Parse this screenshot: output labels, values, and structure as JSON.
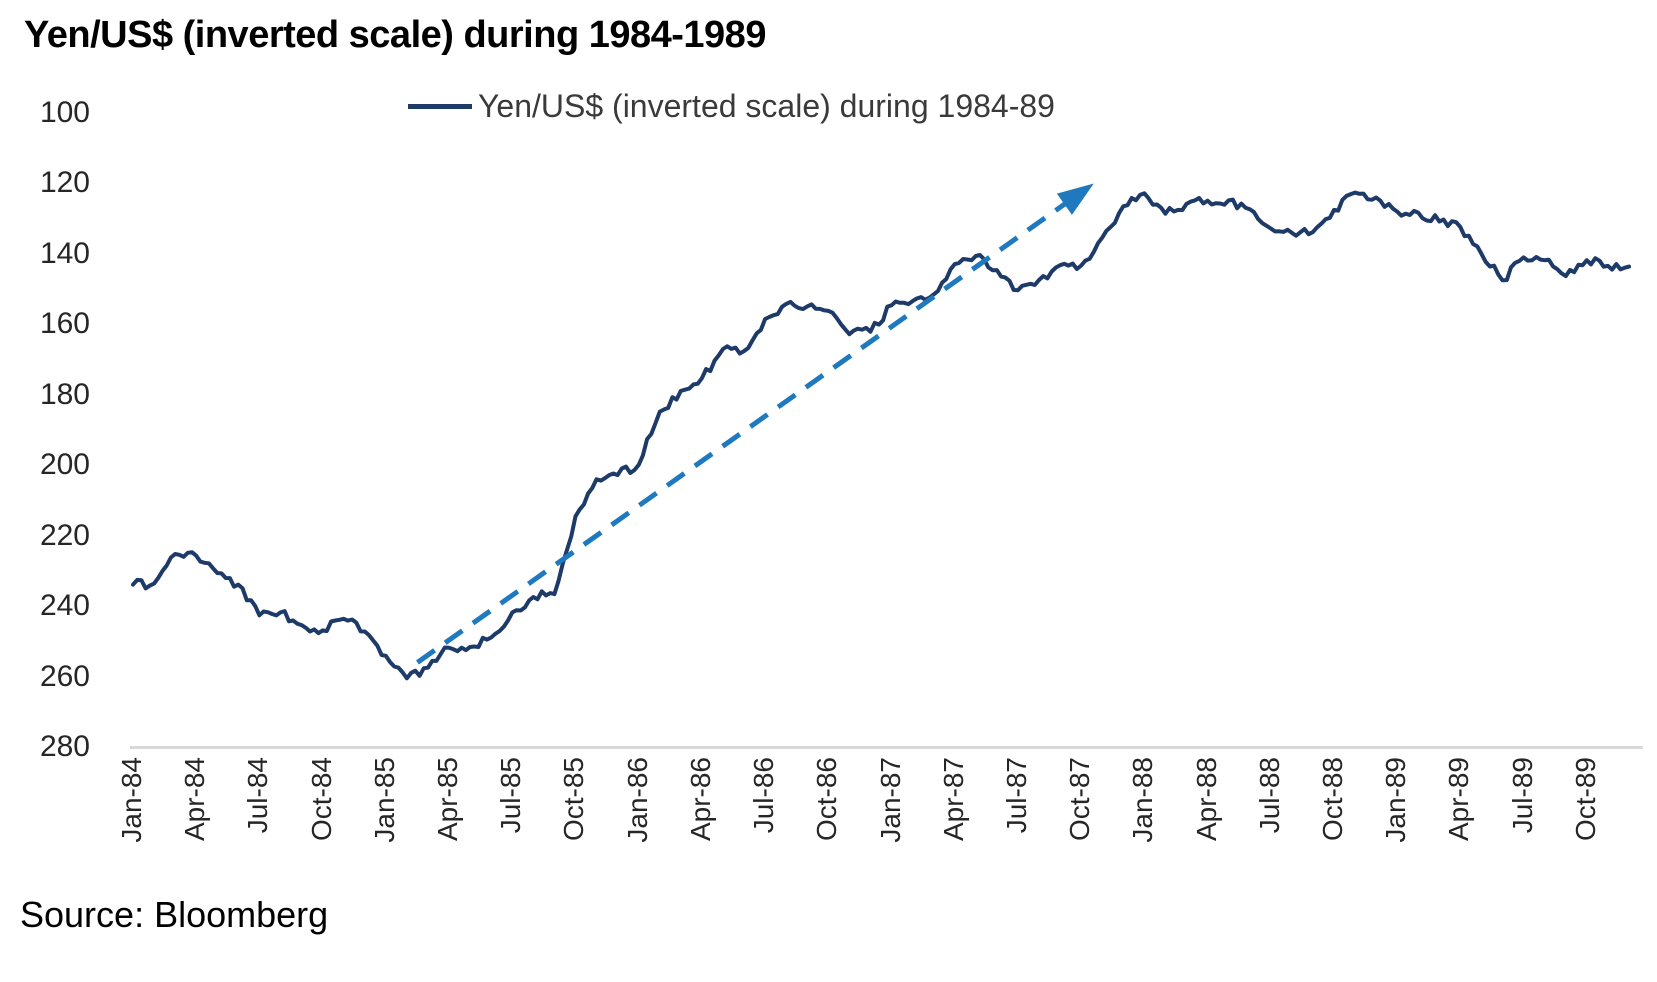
{
  "title": "Yen/US$ (inverted scale) during 1984-1989",
  "source": "Source: Bloomberg",
  "legend": {
    "label": "Yen/US$ (inverted scale) during 1984-89"
  },
  "colors": {
    "series": "#1d3a68",
    "arrow": "#1e79be",
    "axis_line": "#d9d9d9",
    "tick_text": "#262626"
  },
  "chart_data": {
    "type": "line",
    "title": "Yen/US$ (inverted scale) during 1984-1989",
    "xlabel": "",
    "ylabel": "",
    "ylim": [
      100,
      280
    ],
    "y_axis_inverted": true,
    "grid": false,
    "legend_position": "top-center",
    "y_ticks": [
      100,
      120,
      140,
      160,
      180,
      200,
      220,
      240,
      260,
      280
    ],
    "x_tick_labels": [
      "Jan-84",
      "Apr-84",
      "Jul-84",
      "Oct-84",
      "Jan-85",
      "Apr-85",
      "Jul-85",
      "Oct-85",
      "Jan-86",
      "Apr-86",
      "Jul-86",
      "Oct-86",
      "Jan-87",
      "Apr-87",
      "Jul-87",
      "Oct-87",
      "Jan-88",
      "Apr-88",
      "Jul-88",
      "Oct-88",
      "Jan-89",
      "Apr-89",
      "Jul-89",
      "Oct-89"
    ],
    "x_start": "Jan-84",
    "x_step": "1 month",
    "series": [
      {
        "name": "Yen/US$ (inverted scale) during 1984-89",
        "values": [
          233.9,
          233.6,
          225.2,
          225.7,
          230.6,
          233.9,
          242.6,
          241.8,
          245.4,
          246.9,
          243.6,
          247.2,
          254.1,
          260.5,
          257.5,
          251.8,
          251.6,
          248.9,
          241.8,
          237.4,
          236.6,
          214.5,
          204.0,
          202.8,
          199.9,
          184.8,
          178.9,
          175.3,
          167.0,
          167.6,
          158.5,
          154.2,
          154.9,
          156.2,
          162.8,
          162.1,
          154.6,
          153.4,
          151.5,
          142.9,
          140.6,
          144.6,
          150.3,
          147.4,
          143.2,
          143.3,
          135.4,
          126.5,
          122.8,
          128.6,
          125.8,
          124.9,
          124.8,
          127.3,
          132.8,
          134.0,
          133.8,
          127.5,
          122.6,
          124.0,
          128.0,
          128.3,
          130.8,
          132.4,
          140.0,
          147.5,
          141.0,
          141.8,
          146.3,
          141.8,
          143.4,
          143.6
        ]
      }
    ],
    "annotation": {
      "type": "trend-arrow",
      "style": "dashed",
      "from": {
        "month_index": 13.5,
        "value": 256.0
      },
      "to": {
        "month_index": 45.6,
        "value": 120.0
      }
    },
    "noise_amplitude": 1.3
  }
}
